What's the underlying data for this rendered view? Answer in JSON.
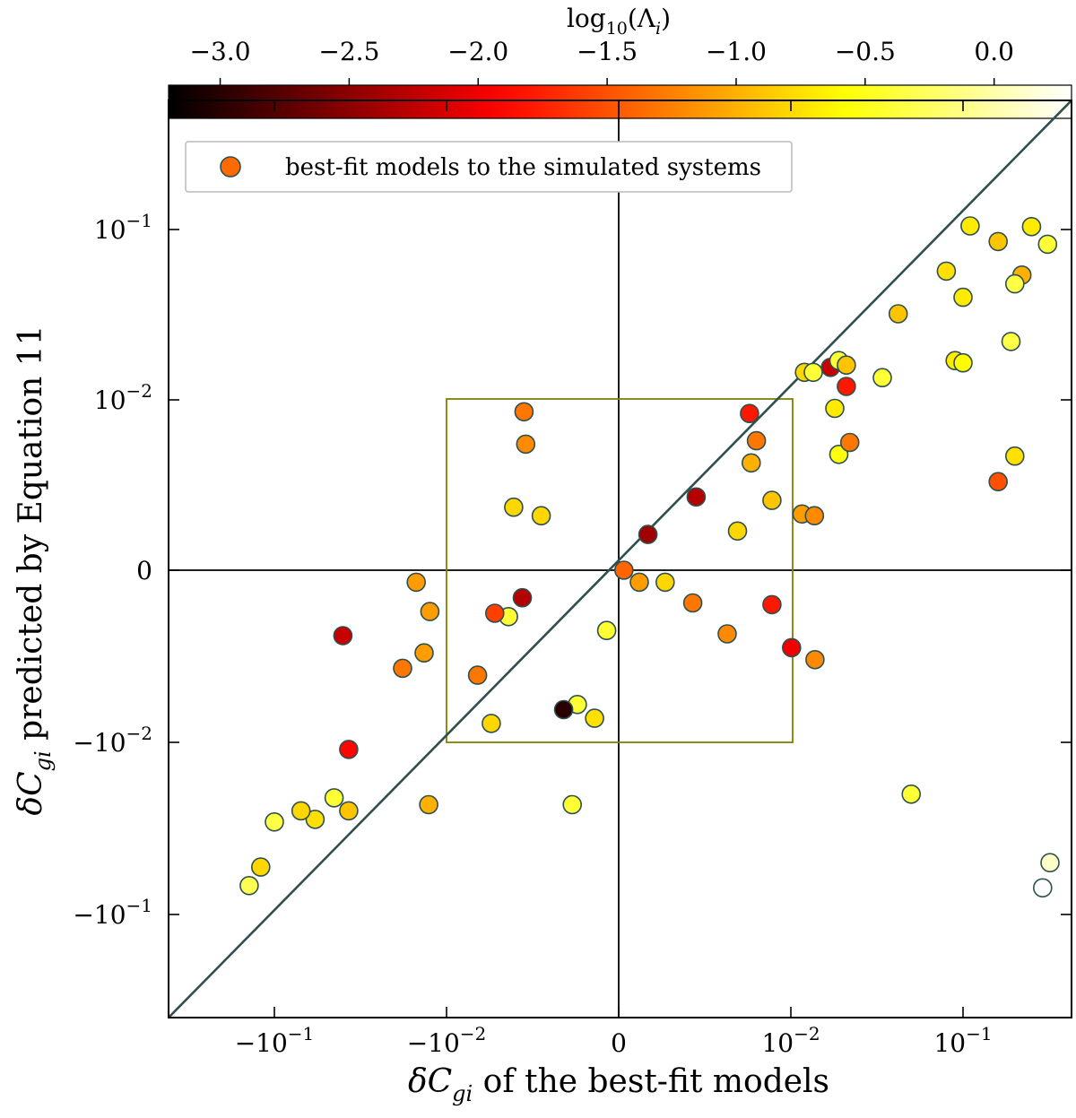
{
  "chart_data": {
    "type": "scatter",
    "xscale": "symlog",
    "yscale": "symlog",
    "linthresh": 0.01,
    "xlim": [
      -0.5,
      0.4
    ],
    "ylim": [
      -0.4,
      0.4
    ],
    "xlabel": "δC_gi of the best-fit models",
    "ylabel": "δC_gi predicted by Equation 11",
    "xticks": [
      {
        "value": -0.1,
        "label": "−10",
        "exp": "−1"
      },
      {
        "value": -0.01,
        "label": "−10",
        "exp": "−2"
      },
      {
        "value": 0,
        "label": "0",
        "exp": ""
      },
      {
        "value": 0.01,
        "label": "10",
        "exp": "−2"
      },
      {
        "value": 0.1,
        "label": "10",
        "exp": "−1"
      }
    ],
    "yticks": [
      {
        "value": 0.1,
        "label": "10",
        "exp": "−1"
      },
      {
        "value": 0.01,
        "label": "10",
        "exp": "−2"
      },
      {
        "value": 0,
        "label": "0",
        "exp": ""
      },
      {
        "value": -0.01,
        "label": "−10",
        "exp": "−2"
      },
      {
        "value": -0.1,
        "label": "−10",
        "exp": "−1"
      }
    ],
    "legend": {
      "label": "best-fit models to the simulated systems",
      "position": "top-left"
    },
    "reference_line": "y = x",
    "highlight_box": {
      "x": [
        -0.01,
        0.01
      ],
      "y": [
        -0.01,
        0.01
      ],
      "color": "#808000"
    },
    "colorbar": {
      "label": "log10(Λi)",
      "range": [
        -3.2,
        0.3
      ],
      "ticks": [
        "−3.0",
        "−2.5",
        "−2.0",
        "−1.5",
        "−1.0",
        "−0.5",
        "0.0"
      ],
      "tick_values": [
        -3.0,
        -2.5,
        -2.0,
        -1.5,
        -1.0,
        -0.5,
        0.0
      ],
      "colormap": "hot"
    },
    "series": [
      {
        "points": [
          {
            "x": 0.11,
            "y": 0.105,
            "c": -0.7
          },
          {
            "x": 0.16,
            "y": 0.085,
            "c": -0.9
          },
          {
            "x": 0.25,
            "y": 0.104,
            "c": -0.7
          },
          {
            "x": 0.31,
            "y": 0.082,
            "c": -0.4
          },
          {
            "x": 0.08,
            "y": 0.057,
            "c": -0.75
          },
          {
            "x": 0.22,
            "y": 0.054,
            "c": -1.0
          },
          {
            "x": 0.2,
            "y": 0.048,
            "c": -0.35
          },
          {
            "x": 0.1,
            "y": 0.04,
            "c": -0.7
          },
          {
            "x": 0.042,
            "y": 0.032,
            "c": -0.9
          },
          {
            "x": 0.19,
            "y": 0.022,
            "c": -0.35
          },
          {
            "x": 0.09,
            "y": 0.017,
            "c": -0.7
          },
          {
            "x": 0.1,
            "y": 0.0165,
            "c": -0.6
          },
          {
            "x": 0.012,
            "y": 0.0145,
            "c": -0.8
          },
          {
            "x": 0.0135,
            "y": 0.0145,
            "c": -0.4
          },
          {
            "x": 0.017,
            "y": 0.0155,
            "c": -2.2
          },
          {
            "x": 0.019,
            "y": 0.017,
            "c": -0.4
          },
          {
            "x": 0.021,
            "y": 0.016,
            "c": -0.9
          },
          {
            "x": 0.021,
            "y": 0.012,
            "c": -1.8
          },
          {
            "x": 0.018,
            "y": 0.0095,
            "c": -0.7
          },
          {
            "x": 0.019,
            "y": 0.0068,
            "c": -0.55
          },
          {
            "x": 0.022,
            "y": 0.0075,
            "c": -1.3
          },
          {
            "x": 0.034,
            "y": 0.0135,
            "c": -0.4
          },
          {
            "x": 0.16,
            "y": 0.0052,
            "c": -1.5
          },
          {
            "x": 0.2,
            "y": 0.0067,
            "c": -0.75
          },
          {
            "x": 0.0076,
            "y": 0.0092,
            "c": -1.8
          },
          {
            "x": 0.008,
            "y": 0.0076,
            "c": -1.3
          },
          {
            "x": 0.0077,
            "y": 0.0063,
            "c": -1.0
          },
          {
            "x": 0.0089,
            "y": 0.0041,
            "c": -0.9
          },
          {
            "x": 0.0045,
            "y": 0.0043,
            "c": -2.3
          },
          {
            "x": 0.0116,
            "y": 0.0033,
            "c": -1.1
          },
          {
            "x": 0.0137,
            "y": 0.0032,
            "c": -1.2
          },
          {
            "x": 0.0017,
            "y": 0.0021,
            "c": -2.4
          },
          {
            "x": 0.0069,
            "y": 0.0023,
            "c": -0.8
          },
          {
            "x": 0.0003,
            "y": 0.0,
            "c": -1.4
          },
          {
            "x": 0.0012,
            "y": -0.0007,
            "c": -1.1
          },
          {
            "x": 0.0027,
            "y": -0.0007,
            "c": -0.8
          },
          {
            "x": 0.0043,
            "y": -0.0019,
            "c": -1.3
          },
          {
            "x": 0.0063,
            "y": -0.0037,
            "c": -1.2
          },
          {
            "x": 0.0089,
            "y": -0.002,
            "c": -1.8
          },
          {
            "x": 0.0101,
            "y": -0.0045,
            "c": -2.0
          },
          {
            "x": 0.0138,
            "y": -0.0052,
            "c": -1.2
          },
          {
            "x": 0.05,
            "y": -0.02,
            "c": -0.4
          },
          {
            "x": 0.32,
            "y": -0.05,
            "c": 0.1
          },
          {
            "x": 0.29,
            "y": -0.07,
            "c": 0.5
          },
          {
            "x": -0.0007,
            "y": -0.0035,
            "c": -0.4
          },
          {
            "x": -0.0014,
            "y": -0.0086,
            "c": -0.75
          },
          {
            "x": -0.0024,
            "y": -0.0078,
            "c": -0.4
          },
          {
            "x": -0.0032,
            "y": -0.0081,
            "c": -3.0
          },
          {
            "x": -0.0056,
            "y": -0.0016,
            "c": -2.3
          },
          {
            "x": -0.0064,
            "y": -0.0027,
            "c": -0.4
          },
          {
            "x": -0.0072,
            "y": -0.0025,
            "c": -1.6
          },
          {
            "x": -0.0074,
            "y": -0.0089,
            "c": -0.8
          },
          {
            "x": -0.0082,
            "y": -0.0061,
            "c": -1.3
          },
          {
            "x": -0.0061,
            "y": 0.0037,
            "c": -0.8
          },
          {
            "x": -0.0054,
            "y": 0.0074,
            "c": -1.2
          },
          {
            "x": -0.0055,
            "y": 0.0093,
            "c": -1.3
          },
          {
            "x": -0.0045,
            "y": 0.0032,
            "c": -0.8
          },
          {
            "x": -0.0125,
            "y": -0.0024,
            "c": -1.1
          },
          {
            "x": -0.0135,
            "y": -0.0048,
            "c": -1.1
          },
          {
            "x": -0.015,
            "y": -0.0007,
            "c": -1.1
          },
          {
            "x": -0.0127,
            "y": -0.023,
            "c": -1.0
          },
          {
            "x": -0.018,
            "y": -0.0057,
            "c": -1.3
          },
          {
            "x": -0.0027,
            "y": -0.023,
            "c": -0.4
          },
          {
            "x": -0.04,
            "y": -0.0038,
            "c": -2.2
          },
          {
            "x": -0.037,
            "y": -0.011,
            "c": -1.9
          },
          {
            "x": -0.045,
            "y": -0.021,
            "c": -0.4
          },
          {
            "x": -0.037,
            "y": -0.025,
            "c": -0.9
          },
          {
            "x": -0.058,
            "y": -0.028,
            "c": -0.75
          },
          {
            "x": -0.07,
            "y": -0.025,
            "c": -0.8
          },
          {
            "x": -0.1,
            "y": -0.029,
            "c": -0.35
          },
          {
            "x": -0.12,
            "y": -0.053,
            "c": -0.8
          },
          {
            "x": -0.14,
            "y": -0.068,
            "c": -0.3
          }
        ]
      }
    ]
  }
}
